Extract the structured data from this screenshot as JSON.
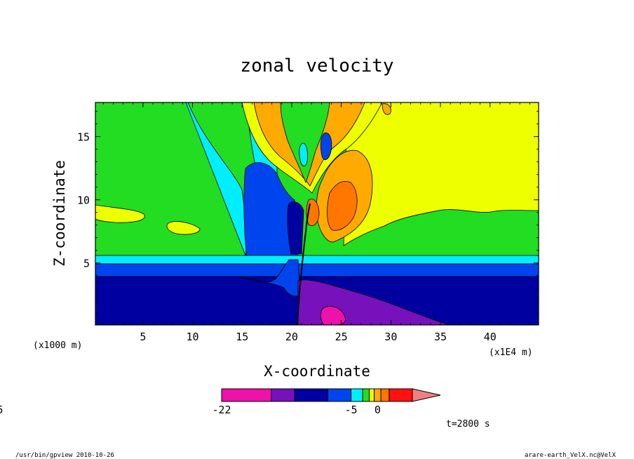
{
  "chart_data": {
    "type": "heatmap",
    "title": "zonal velocity",
    "xlabel": "X-coordinate",
    "ylabel": "Z-coordinate",
    "x_unit_left": "(x1000 m)",
    "x_unit_right": "(x1E4 m)",
    "xlim": [
      0.2,
      44.9
    ],
    "ylim": [
      0.1,
      17.7
    ],
    "x_ticks": [
      "5",
      "10",
      "15",
      "20",
      "25",
      "30",
      "35",
      "40"
    ],
    "x_tick_values": [
      5,
      10,
      15,
      20,
      25,
      30,
      35,
      40
    ],
    "y_ticks": [
      "5",
      "10",
      "15"
    ],
    "y_tick_values": [
      5,
      10,
      15
    ],
    "colorbar": {
      "levels": [
        -22,
        -18,
        -12,
        -8,
        -5,
        -3,
        -1.5,
        -0.5,
        0.5,
        1.5,
        3,
        5,
        8,
        12,
        16,
        20
      ],
      "colors": [
        "#ee11aa",
        "#7711bb",
        "#0000a0",
        "#0044ee",
        "#00eeff",
        "#22dd22",
        "#eeff00",
        "#ffaa00",
        "#ff7700",
        "#ff1111",
        "#f08080"
      ],
      "labels": [
        "-22",
        "-5",
        "0",
        "5"
      ],
      "label_values": [
        -22,
        -5,
        0,
        5
      ]
    },
    "time_label": "t=2800 s"
  },
  "footer": {
    "left": "/usr/bin/gpview   2010-10-26",
    "right": "arare-earth_VelX.nc@VelX"
  }
}
